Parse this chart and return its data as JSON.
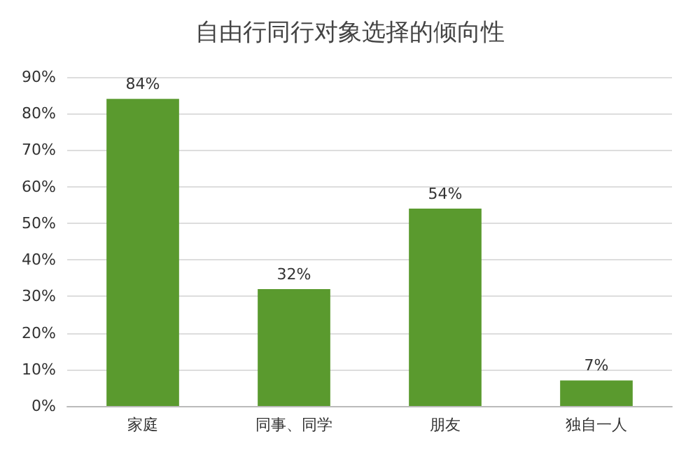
{
  "chart_data": {
    "type": "bar",
    "title": "自由行同行对象选择的倾向性",
    "categories": [
      "家庭",
      "同事、同学",
      "朋友",
      "独自一人"
    ],
    "values": [
      84,
      32,
      54,
      7
    ],
    "value_labels": [
      "84%",
      "32%",
      "54%",
      "7%"
    ],
    "color": "#5a9a2e",
    "ylim": [
      0,
      90
    ],
    "yticks": [
      {
        "value": 0,
        "label": "0%"
      },
      {
        "value": 10,
        "label": "10%"
      },
      {
        "value": 20,
        "label": "20%"
      },
      {
        "value": 30,
        "label": "30%"
      },
      {
        "value": 40,
        "label": "40%"
      },
      {
        "value": 50,
        "label": "50%"
      },
      {
        "value": 60,
        "label": "60%"
      },
      {
        "value": 70,
        "label": "70%"
      },
      {
        "value": 80,
        "label": "80%"
      },
      {
        "value": 90,
        "label": "90%"
      }
    ],
    "grid": "y"
  }
}
